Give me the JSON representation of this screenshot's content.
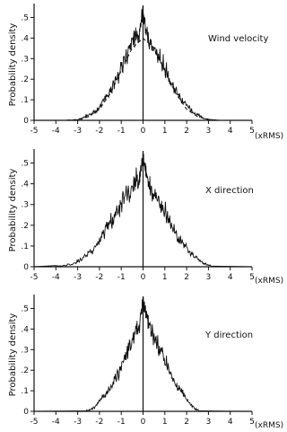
{
  "chart_data": [
    {
      "type": "line",
      "title": "Wind velocity",
      "ylabel": "Probability density",
      "xunit": "(xRMS)",
      "xlim": [
        -5,
        5
      ],
      "ylim": [
        0,
        0.55
      ],
      "xticks": [
        "-5",
        "-4",
        "-3",
        "-2",
        "-1",
        "0",
        "1",
        "2",
        "3",
        "4",
        "5"
      ],
      "yticks": [
        "0",
        ".1",
        ".2",
        ".3",
        ".4",
        ".5"
      ],
      "series": [
        {
          "style": "solid",
          "x": [
            -5,
            -3.5,
            -3.0,
            -2.8,
            -2.6,
            -2.4,
            -2.2,
            -2.0,
            -1.8,
            -1.6,
            -1.4,
            -1.2,
            -1.0,
            -0.8,
            -0.6,
            -0.4,
            -0.3,
            -0.2,
            -0.1,
            0.0,
            0.1,
            0.2,
            0.3,
            0.4,
            0.6,
            0.8,
            1.0,
            1.2,
            1.4,
            1.6,
            1.8,
            2.0,
            2.2,
            2.4,
            2.6,
            2.8,
            3.0,
            3.2,
            3.5,
            5
          ],
          "y": [
            0,
            0.0,
            0.004,
            0.01,
            0.02,
            0.03,
            0.045,
            0.065,
            0.1,
            0.13,
            0.16,
            0.2,
            0.25,
            0.31,
            0.34,
            0.4,
            0.42,
            0.38,
            0.48,
            0.54,
            0.46,
            0.41,
            0.38,
            0.36,
            0.33,
            0.3,
            0.26,
            0.2,
            0.16,
            0.13,
            0.1,
            0.075,
            0.05,
            0.03,
            0.02,
            0.01,
            0.005,
            0.003,
            0.0,
            0
          ]
        },
        {
          "style": "dashed",
          "x": [
            -3.5,
            -3.0,
            -2.5,
            -2.0,
            -1.5,
            -1.0,
            -0.5,
            0.0,
            0.5,
            1.0,
            1.5,
            2.0,
            2.5,
            3.0,
            3.5
          ],
          "y": [
            0.001,
            0.004,
            0.018,
            0.054,
            0.13,
            0.242,
            0.352,
            0.399,
            0.352,
            0.242,
            0.13,
            0.054,
            0.018,
            0.004,
            0.001
          ]
        }
      ]
    },
    {
      "type": "line",
      "title": "X direction",
      "ylabel": "Probability density",
      "xunit": "(xRMS)",
      "xlim": [
        -5,
        5
      ],
      "ylim": [
        0,
        0.55
      ],
      "xticks": [
        "-5",
        "-4",
        "-3",
        "-2",
        "-1",
        "0",
        "1",
        "2",
        "3",
        "4",
        "5"
      ],
      "yticks": [
        "0",
        ".1",
        ".2",
        ".3",
        ".4",
        ".5"
      ],
      "series": [
        {
          "style": "solid",
          "x": [
            -5,
            -4.0,
            -3.5,
            -3.2,
            -3.0,
            -2.8,
            -2.6,
            -2.4,
            -2.2,
            -2.0,
            -1.8,
            -1.6,
            -1.4,
            -1.2,
            -1.0,
            -0.8,
            -0.6,
            -0.4,
            -0.3,
            -0.2,
            -0.1,
            0.0,
            0.1,
            0.2,
            0.3,
            0.4,
            0.6,
            0.8,
            1.0,
            1.2,
            1.4,
            1.6,
            1.8,
            2.0,
            2.2,
            2.4,
            2.6,
            2.8,
            3.0,
            3.2,
            5
          ],
          "y": [
            0,
            0.003,
            0.008,
            0.015,
            0.025,
            0.04,
            0.055,
            0.07,
            0.09,
            0.13,
            0.16,
            0.2,
            0.23,
            0.27,
            0.3,
            0.35,
            0.34,
            0.4,
            0.44,
            0.38,
            0.47,
            0.53,
            0.48,
            0.42,
            0.4,
            0.36,
            0.34,
            0.3,
            0.27,
            0.22,
            0.18,
            0.14,
            0.12,
            0.09,
            0.06,
            0.05,
            0.03,
            0.015,
            0.008,
            0.003,
            0
          ]
        }
      ]
    },
    {
      "type": "line",
      "title": "Y direction",
      "ylabel": "Probability density",
      "xunit": "(xRMS)",
      "xlim": [
        -5,
        5
      ],
      "ylim": [
        0,
        0.55
      ],
      "xticks": [
        "-5",
        "-4",
        "-3",
        "-2",
        "-1",
        "0",
        "1",
        "2",
        "3",
        "4",
        "5"
      ],
      "yticks": [
        "0",
        ".1",
        ".2",
        ".3",
        ".4",
        ".5"
      ],
      "series": [
        {
          "style": "solid",
          "x": [
            -5,
            -2.6,
            -2.4,
            -2.2,
            -2.0,
            -1.8,
            -1.6,
            -1.4,
            -1.2,
            -1.0,
            -0.8,
            -0.6,
            -0.4,
            -0.3,
            -0.2,
            -0.1,
            0.0,
            0.1,
            0.2,
            0.3,
            0.4,
            0.6,
            0.8,
            1.0,
            1.2,
            1.4,
            1.6,
            1.8,
            2.0,
            2.2,
            2.4,
            2.6,
            5
          ],
          "y": [
            0,
            0.002,
            0.01,
            0.02,
            0.05,
            0.07,
            0.1,
            0.13,
            0.17,
            0.21,
            0.26,
            0.31,
            0.38,
            0.42,
            0.4,
            0.47,
            0.52,
            0.48,
            0.44,
            0.4,
            0.38,
            0.34,
            0.29,
            0.25,
            0.2,
            0.16,
            0.12,
            0.09,
            0.06,
            0.03,
            0.01,
            0.002,
            0
          ]
        }
      ]
    }
  ]
}
